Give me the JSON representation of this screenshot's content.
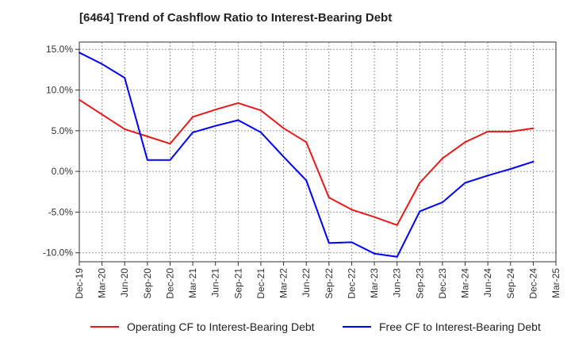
{
  "chart_data": {
    "type": "line",
    "title": "[6464]  Trend of Cashflow Ratio to Interest-Bearing Debt",
    "xlabel": "",
    "ylabel": "",
    "x": [
      "Dec-19",
      "Mar-20",
      "Jun-20",
      "Sep-20",
      "Dec-20",
      "Mar-21",
      "Jun-21",
      "Sep-21",
      "Dec-21",
      "Mar-22",
      "Jun-22",
      "Sep-22",
      "Dec-22",
      "Mar-23",
      "Jun-23",
      "Sep-23",
      "Dec-23",
      "Mar-24",
      "Jun-24",
      "Sep-24",
      "Dec-24",
      "Mar-25"
    ],
    "y_ticks": [
      "15.0%",
      "10.0%",
      "5.0%",
      "0.0%",
      "-5.0%",
      "-10.0%"
    ],
    "ylim": [
      -11.1,
      15.9
    ],
    "grid": true,
    "legend_position": "bottom",
    "series": [
      {
        "name": "Operating CF to Interest-Bearing Debt",
        "color": "#e41a1c",
        "values": [
          8.8,
          7.0,
          5.2,
          4.3,
          3.4,
          6.7,
          7.6,
          8.4,
          7.5,
          5.3,
          3.6,
          -3.2,
          -4.7,
          -5.6,
          -6.6,
          -1.4,
          1.6,
          3.6,
          4.9,
          4.9,
          5.3,
          null
        ]
      },
      {
        "name": "Free CF to Interest-Bearing Debt",
        "color": "#0000ff",
        "values": [
          14.6,
          13.2,
          11.5,
          1.4,
          1.4,
          4.8,
          5.6,
          6.3,
          4.8,
          1.8,
          -1.1,
          -8.8,
          -8.7,
          -10.1,
          -10.5,
          -4.9,
          -3.8,
          -1.4,
          -0.5,
          0.3,
          1.2,
          null
        ]
      }
    ]
  }
}
